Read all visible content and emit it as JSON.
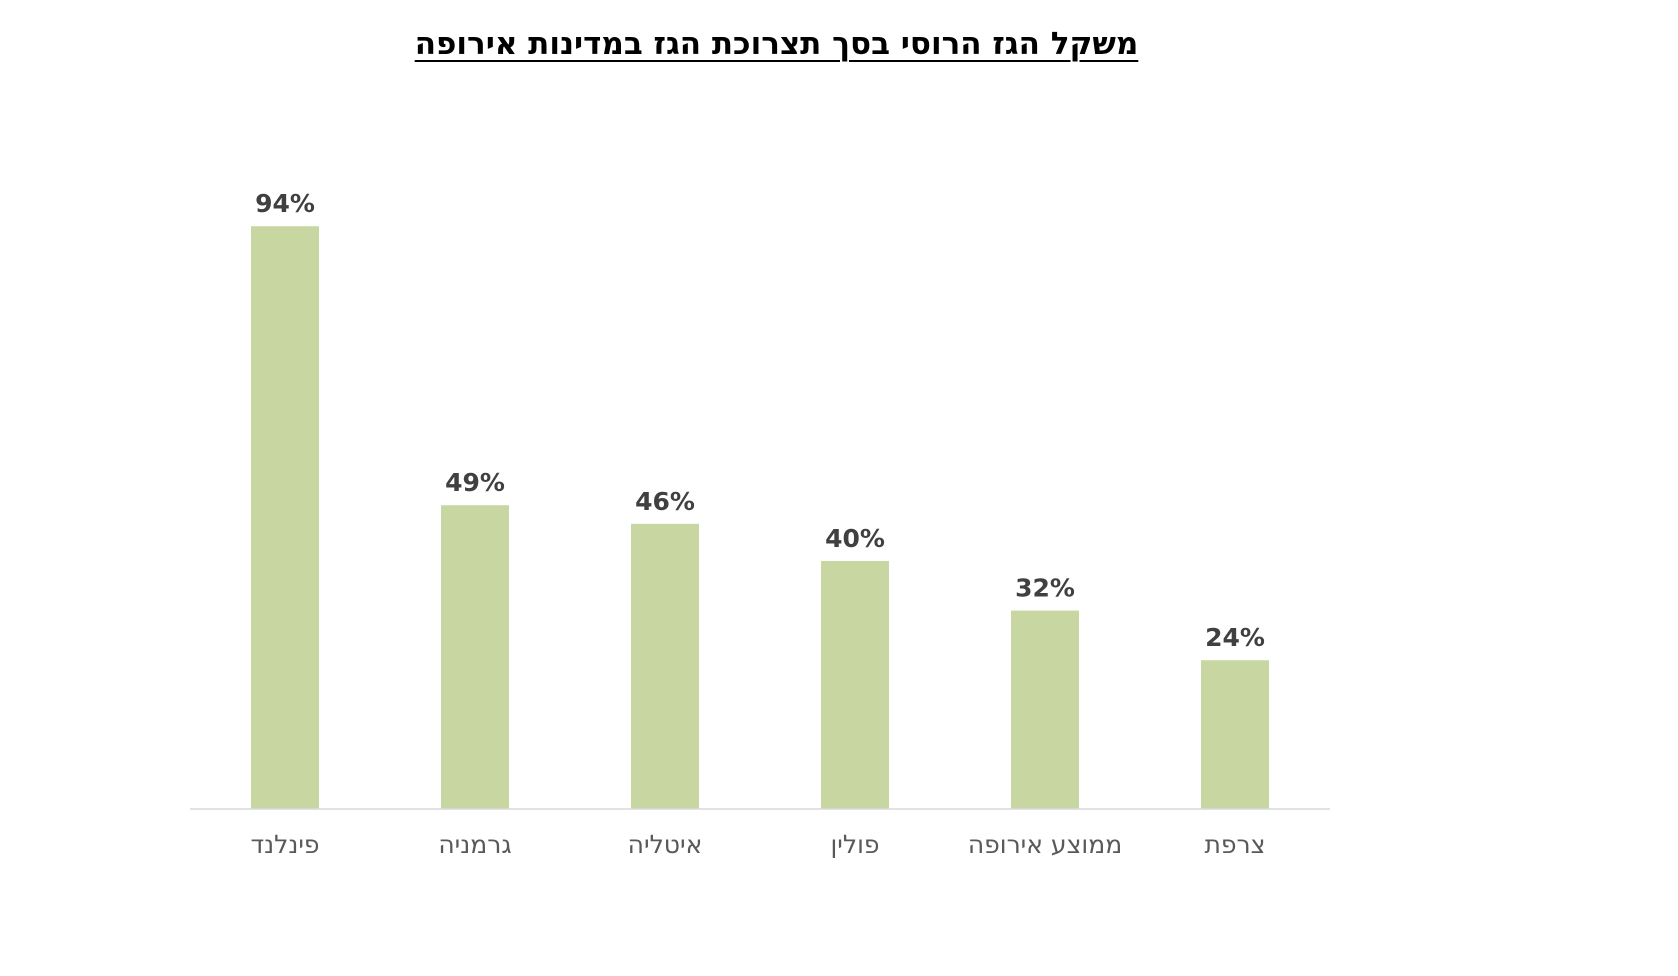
{
  "chart_data": {
    "type": "bar",
    "title": "משקל הגז הרוסי בסך תצרוכת הגז במדינות אירופה",
    "categories": [
      "פינלנד",
      "גרמניה",
      "איטליה",
      "פולין",
      "ממוצע אירופה",
      "צרפת"
    ],
    "values": [
      94,
      49,
      46,
      40,
      32,
      24
    ],
    "value_labels": [
      "94%",
      "49%",
      "46%",
      "40%",
      "32%",
      "24%"
    ],
    "xlabel": "",
    "ylabel": "",
    "ylim": [
      0,
      100
    ],
    "grid": false,
    "legend": "none",
    "bar_color": "#c8d7a1",
    "axis_color": "#d9d9d9"
  }
}
